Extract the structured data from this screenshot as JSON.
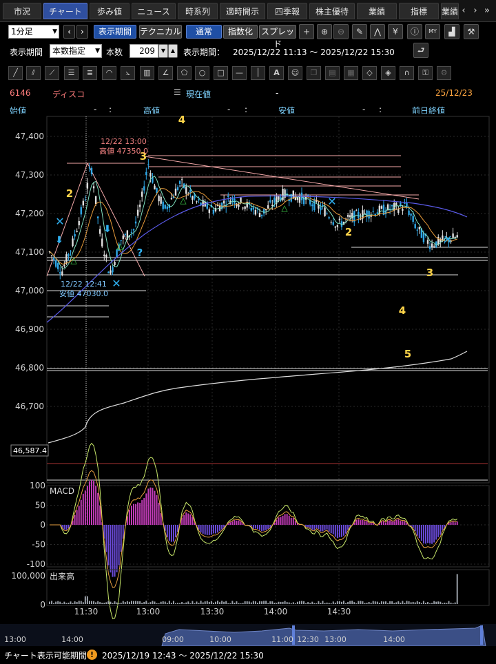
{
  "tabs": [
    {
      "label": "市況",
      "active": false
    },
    {
      "label": "チャート",
      "active": true
    },
    {
      "label": "歩み値",
      "active": false
    },
    {
      "label": "ニュース",
      "active": false
    },
    {
      "label": "時系列",
      "active": false
    },
    {
      "label": "適時開示",
      "active": false
    },
    {
      "label": "四季報",
      "active": false
    },
    {
      "label": "株主優待",
      "active": false
    },
    {
      "label": "業績",
      "active": false
    },
    {
      "label": "指標",
      "active": false
    },
    {
      "label": "業績",
      "active": false
    }
  ],
  "toolbar": {
    "interval": "1分足",
    "period_button": "表示期間",
    "technical_button": "テクニカル",
    "normal_button": "通常",
    "index_button": "指数化",
    "spread_button": "スプレッド"
  },
  "period_row": {
    "label": "表示期間",
    "mode": "本数指定",
    "count_label": "本数",
    "count_value": "209",
    "range_label": "表示期間：",
    "range_value": "2025/12/22 11:13 ～ 2025/12/22 15:30"
  },
  "quote": {
    "code": "6146",
    "name": "ディスコ",
    "current_label": "現在値",
    "current_value": "-",
    "date": "25/12/23",
    "open_label": "始値",
    "open_value": "-",
    "open_time": ":",
    "high_label": "高値",
    "high_value": "-",
    "high_time": ":",
    "low_label": "安値",
    "low_value": "-",
    "low_time": ":",
    "prev_label": "前日終値"
  },
  "chart_data": {
    "type": "candlestick",
    "y_ticks": [
      "47,400",
      "47,300",
      "47,200",
      "47,100",
      "47,000",
      "46,900",
      "46,800",
      "46,700"
    ],
    "ylim": [
      46560,
      47450
    ],
    "x_ticks": [
      "11:30",
      "13:00",
      "13:30",
      "14:00",
      "14:30"
    ],
    "price_marker": "46,587.4",
    "high_annotation": {
      "time": "12/22 13:00",
      "label": "高値 47350.0"
    },
    "low_annotation": {
      "time": "12/22 12:41",
      "label": "安値 47030.0"
    },
    "wave_labels": [
      "4",
      "3",
      "2",
      "2",
      "3",
      "4",
      "5"
    ],
    "macd": {
      "label": "MACD",
      "y_ticks": [
        "100",
        "50",
        "0",
        "-50",
        "-100"
      ]
    },
    "volume": {
      "label": "出来高",
      "y_ticks": [
        "100,000",
        "0"
      ]
    },
    "navigator_ticks": [
      "13:00",
      "14:00",
      "09:00",
      "10:00",
      "11:00",
      "12:30",
      "13:00",
      "14:00"
    ]
  },
  "footer": {
    "label": "チャート表示可能期間",
    "range": "2025/12/19 12:43 ～ 2025/12/22 15:30"
  },
  "colors": {
    "tab_active": "#2f4fa0",
    "up": "#e0e0e0",
    "down": "#2fa8e8",
    "ma_short": "#e89b3a",
    "ma_long": "#5a5ae8"
  }
}
